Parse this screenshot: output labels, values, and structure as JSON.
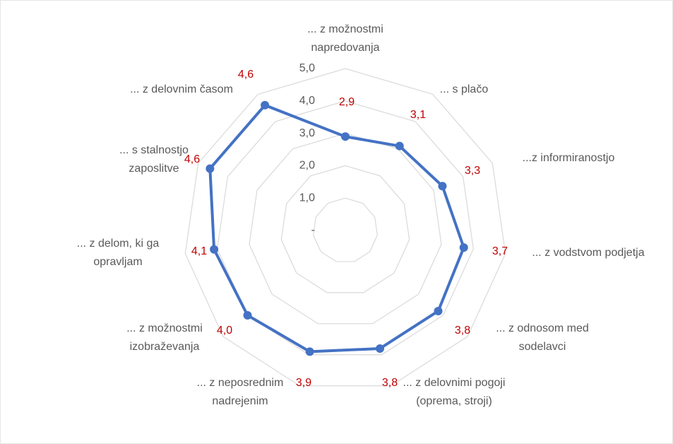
{
  "chart_data": {
    "type": "radar",
    "categories": [
      "... z možnostmi napredovanja",
      "... s plačo",
      "...z informiranostjo",
      "... z vodstvom podjetja",
      "... z odnosom med sodelavci",
      "... z delovnimi pogoji (oprema, stroji)",
      "... z neposrednim nadrejenim",
      "... z možnostmi izobraževanja",
      "... z delom, ki ga opravljam",
      "... s stalnostjo zaposlitve",
      "... z delovnim časom"
    ],
    "values": [
      2.9,
      3.1,
      3.3,
      3.7,
      3.8,
      3.8,
      3.9,
      4.0,
      4.1,
      4.6,
      4.6
    ],
    "value_labels": [
      "2,9",
      "3,1",
      "3,3",
      "3,7",
      "3,8",
      "3,8",
      "3,9",
      "4,0",
      "4,1",
      "4,6",
      "4,6"
    ],
    "color": "#4472c4",
    "ylim": [
      0,
      5
    ],
    "yticks": [
      {
        "value": 0,
        "label": "-"
      },
      {
        "value": 1,
        "label": "1,0"
      },
      {
        "value": 2,
        "label": "2,0"
      },
      {
        "value": 3,
        "label": "3,0"
      },
      {
        "value": 4,
        "label": "4,0"
      },
      {
        "value": 5,
        "label": "5,0"
      }
    ],
    "grid": true
  }
}
